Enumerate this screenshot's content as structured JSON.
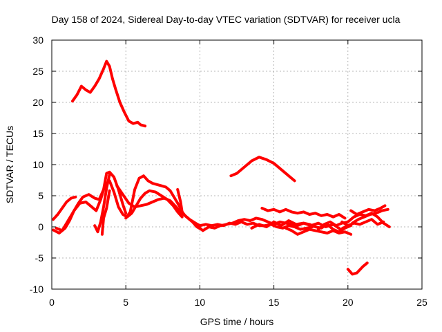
{
  "chart_data": {
    "type": "line",
    "title": "Day 158 of 2024, Sidereal Day-to-day VTEC variation (SDTVAR) for receiver ucla",
    "xlabel": "GPS time / hours",
    "ylabel": "SDTVAR / TECUs",
    "xlim": [
      0,
      25
    ],
    "ylim": [
      -10,
      30
    ],
    "xticks": [
      0,
      5,
      10,
      15,
      20,
      25
    ],
    "yticks": [
      -10,
      -5,
      0,
      5,
      10,
      15,
      20,
      25,
      30
    ],
    "grid": true,
    "color": "#ff0000",
    "series": [
      {
        "name": "s1",
        "x": [
          1.4,
          1.7,
          2.0,
          2.3,
          2.6,
          2.9,
          3.2,
          3.5,
          3.7,
          3.9,
          4.1,
          4.3,
          4.6,
          4.9,
          5.2,
          5.5,
          5.8,
          6.0,
          6.3
        ],
        "y": [
          20.2,
          21.2,
          22.6,
          22.0,
          21.6,
          22.6,
          23.8,
          25.4,
          26.6,
          25.8,
          23.8,
          22.2,
          20.0,
          18.4,
          17.0,
          16.6,
          16.8,
          16.4,
          16.2
        ]
      },
      {
        "name": "s2",
        "x": [
          12.1,
          12.5,
          13.0,
          13.5,
          14.0,
          14.5,
          15.0,
          15.5,
          16.0,
          16.4
        ],
        "y": [
          8.2,
          8.6,
          9.6,
          10.6,
          11.2,
          10.8,
          10.2,
          9.2,
          8.2,
          7.4
        ]
      },
      {
        "name": "s3",
        "x": [
          20.0,
          20.3,
          20.6,
          21.0,
          21.3
        ],
        "y": [
          -6.8,
          -7.6,
          -7.4,
          -6.4,
          -5.8
        ]
      },
      {
        "name": "s4",
        "x": [
          0.1,
          0.4,
          0.7,
          1.0,
          1.3,
          1.6
        ],
        "y": [
          1.2,
          2.0,
          3.0,
          4.0,
          4.6,
          4.8
        ]
      },
      {
        "name": "s5",
        "x": [
          0.1,
          0.5,
          0.9,
          1.2,
          1.5,
          1.8,
          2.1,
          2.5,
          2.9,
          3.2,
          3.5,
          3.7,
          3.9,
          4.2,
          4.5,
          4.8,
          5.0
        ],
        "y": [
          -0.5,
          -1.0,
          -0.2,
          1.0,
          2.6,
          3.8,
          4.8,
          5.2,
          4.6,
          4.4,
          6.0,
          8.6,
          8.8,
          8.0,
          6.0,
          3.6,
          2.2
        ]
      },
      {
        "name": "s6",
        "x": [
          0.3,
          0.7,
          1.1,
          1.5,
          1.9,
          2.3,
          2.7,
          3.0,
          3.3,
          3.6,
          3.9,
          4.2,
          4.5,
          4.8,
          5.1,
          5.4,
          5.7,
          6.0,
          6.3,
          6.6,
          7.0,
          7.4,
          7.8,
          8.2,
          8.5,
          8.8
        ],
        "y": [
          -0.2,
          -0.6,
          1.0,
          2.6,
          3.8,
          4.0,
          3.2,
          2.6,
          4.4,
          6.8,
          7.4,
          5.6,
          3.2,
          2.0,
          1.6,
          2.2,
          3.4,
          4.6,
          5.4,
          5.8,
          5.6,
          5.0,
          4.4,
          3.4,
          2.4,
          1.6
        ]
      },
      {
        "name": "s7",
        "x": [
          2.9,
          3.1,
          3.3,
          3.5,
          3.7,
          3.9
        ],
        "y": [
          0.2,
          -0.8,
          0.8,
          3.2,
          6.2,
          8.4
        ]
      },
      {
        "name": "s8",
        "x": [
          3.4,
          3.5,
          3.7,
          3.9
        ],
        "y": [
          -1.2,
          1.4,
          3.0,
          5.8
        ]
      },
      {
        "name": "s9",
        "x": [
          5.0,
          5.3,
          5.6,
          5.9,
          6.2,
          6.5,
          6.8,
          7.1,
          7.4,
          7.7,
          8.0,
          8.3,
          8.6,
          8.9,
          9.2,
          9.5,
          9.8,
          10.1
        ],
        "y": [
          1.4,
          2.4,
          6.0,
          7.8,
          8.2,
          7.4,
          7.0,
          6.8,
          6.6,
          6.4,
          5.8,
          4.6,
          3.4,
          2.0,
          1.4,
          0.8,
          0.0,
          -0.4
        ]
      },
      {
        "name": "s10",
        "x": [
          4.4,
          4.8,
          5.2,
          5.6,
          6.0,
          6.4,
          6.8,
          7.2,
          7.6,
          8.0,
          8.4,
          8.8
        ],
        "y": [
          6.6,
          5.2,
          3.8,
          3.2,
          3.4,
          3.6,
          4.0,
          4.4,
          4.6,
          4.2,
          3.2,
          2.0
        ]
      },
      {
        "name": "s11",
        "x": [
          8.5,
          8.7,
          8.8,
          9.0,
          9.3,
          9.7,
          10.0,
          10.4,
          10.8,
          11.2,
          11.6,
          12.0,
          12.4,
          12.8,
          13.2,
          13.6,
          14.0,
          14.4,
          14.8,
          15.2,
          15.6,
          16.0,
          16.4,
          16.8,
          17.2,
          17.6
        ],
        "y": [
          6.0,
          4.0,
          2.4,
          1.8,
          1.2,
          0.6,
          0.2,
          0.4,
          0.2,
          0.4,
          0.2,
          0.6,
          0.4,
          0.8,
          0.4,
          0.6,
          0.2,
          0.2,
          0.4,
          0.0,
          -0.2,
          0.2,
          0.0,
          -0.4,
          -0.2,
          0.0
        ]
      },
      {
        "name": "s12",
        "x": [
          9.8,
          10.2,
          10.6,
          11.0,
          11.4,
          11.8,
          12.2,
          12.6,
          13.0,
          13.4,
          13.8,
          14.2,
          14.6,
          15.0,
          15.4,
          15.8,
          16.2,
          16.6,
          17.0,
          17.4,
          17.8,
          18.2,
          18.6,
          19.0,
          19.4,
          19.8,
          20.2
        ],
        "y": [
          0.2,
          -0.6,
          0.0,
          -0.2,
          0.2,
          0.4,
          0.6,
          1.0,
          1.2,
          1.0,
          1.4,
          1.2,
          0.8,
          0.4,
          0.8,
          0.6,
          0.4,
          0.2,
          0.6,
          0.4,
          0.0,
          -0.2,
          0.4,
          -0.4,
          -0.8,
          -0.2,
          0.2
        ]
      },
      {
        "name": "s13",
        "x": [
          13.5,
          14.0,
          14.5,
          15.0,
          15.5,
          16.0,
          16.5,
          17.0,
          17.5,
          18.0,
          18.5,
          19.0,
          19.5,
          20.0
        ],
        "y": [
          -0.2,
          0.4,
          0.0,
          0.8,
          0.2,
          1.0,
          0.4,
          0.6,
          0.2,
          0.6,
          0.0,
          0.4,
          -0.4,
          0.2
        ]
      },
      {
        "name": "s14",
        "x": [
          14.2,
          14.6,
          15.0,
          15.4,
          15.8,
          16.2,
          16.6,
          17.0,
          17.4,
          17.8,
          18.2,
          18.6,
          19.0,
          19.4,
          19.8
        ],
        "y": [
          3.0,
          2.6,
          2.8,
          2.4,
          2.8,
          2.4,
          2.2,
          2.4,
          2.0,
          2.2,
          1.8,
          2.0,
          1.6,
          2.0,
          1.4
        ]
      },
      {
        "name": "s15",
        "x": [
          15.8,
          16.2,
          16.6,
          17.0,
          17.4,
          17.8,
          18.2,
          18.6,
          19.0,
          19.4,
          19.8,
          20.2
        ],
        "y": [
          -0.2,
          -0.6,
          -1.2,
          -0.8,
          -0.4,
          -0.6,
          -0.8,
          -1.0,
          -0.6,
          -1.0,
          -0.8,
          -1.2
        ]
      },
      {
        "name": "s16",
        "x": [
          18.0,
          18.4,
          18.8,
          19.2,
          19.6,
          20.0,
          20.4,
          20.8,
          21.2,
          21.6,
          22.0,
          22.4,
          22.8
        ],
        "y": [
          -0.4,
          0.4,
          0.8,
          0.2,
          0.6,
          0.8,
          1.6,
          2.0,
          1.8,
          2.2,
          1.6,
          0.6,
          0.0
        ]
      },
      {
        "name": "s17",
        "x": [
          20.2,
          20.6,
          21.0,
          21.4,
          21.8,
          22.2,
          22.5
        ],
        "y": [
          2.6,
          2.0,
          2.4,
          2.8,
          2.6,
          3.0,
          3.4
        ]
      },
      {
        "name": "s18",
        "x": [
          20.3,
          20.7,
          21.1,
          21.5,
          21.9,
          22.3,
          22.7
        ],
        "y": [
          0.6,
          1.2,
          1.6,
          2.0,
          2.2,
          2.6,
          2.8
        ]
      },
      {
        "name": "s19",
        "x": [
          19.6,
          20.0,
          20.4,
          20.8,
          21.2,
          21.6,
          22.0,
          22.4
        ],
        "y": [
          0.8,
          0.2,
          0.6,
          0.4,
          0.8,
          1.2,
          0.4,
          0.8
        ]
      }
    ]
  }
}
